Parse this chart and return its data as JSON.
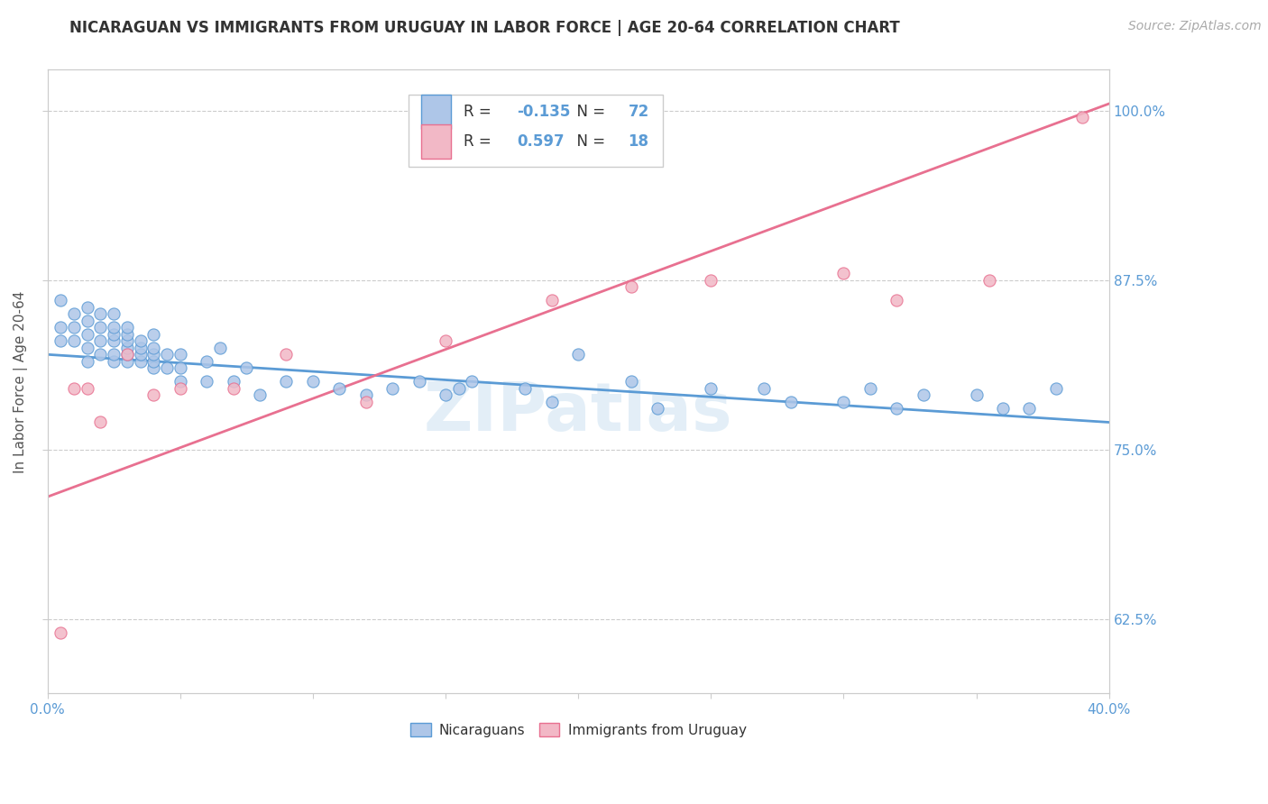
{
  "title": "NICARAGUAN VS IMMIGRANTS FROM URUGUAY IN LABOR FORCE | AGE 20-64 CORRELATION CHART",
  "source": "Source: ZipAtlas.com",
  "ylabel": "In Labor Force | Age 20-64",
  "xlim": [
    0.0,
    0.4
  ],
  "ylim": [
    0.57,
    1.03
  ],
  "xticks": [
    0.0,
    0.05,
    0.1,
    0.15,
    0.2,
    0.25,
    0.3,
    0.35,
    0.4
  ],
  "yticks": [
    0.625,
    0.75,
    0.875,
    1.0
  ],
  "yticklabels": [
    "62.5%",
    "75.0%",
    "87.5%",
    "100.0%"
  ],
  "blue_color": "#aec6e8",
  "pink_color": "#f2b8c6",
  "blue_edge_color": "#5b9bd5",
  "pink_edge_color": "#e87090",
  "blue_line_color": "#5b9bd5",
  "pink_line_color": "#e87090",
  "blue_R": -0.135,
  "blue_N": 72,
  "pink_R": 0.597,
  "pink_N": 18,
  "watermark": "ZIPatlas",
  "blue_scatter_x": [
    0.005,
    0.005,
    0.005,
    0.01,
    0.01,
    0.01,
    0.015,
    0.015,
    0.015,
    0.015,
    0.015,
    0.02,
    0.02,
    0.02,
    0.02,
    0.025,
    0.025,
    0.025,
    0.025,
    0.025,
    0.025,
    0.03,
    0.03,
    0.03,
    0.03,
    0.03,
    0.03,
    0.035,
    0.035,
    0.035,
    0.035,
    0.04,
    0.04,
    0.04,
    0.04,
    0.04,
    0.045,
    0.045,
    0.05,
    0.05,
    0.05,
    0.06,
    0.06,
    0.065,
    0.07,
    0.075,
    0.08,
    0.09,
    0.1,
    0.11,
    0.12,
    0.13,
    0.14,
    0.15,
    0.155,
    0.16,
    0.18,
    0.19,
    0.2,
    0.22,
    0.23,
    0.25,
    0.27,
    0.28,
    0.3,
    0.31,
    0.32,
    0.33,
    0.35,
    0.36,
    0.37,
    0.38
  ],
  "blue_scatter_y": [
    0.83,
    0.84,
    0.86,
    0.83,
    0.84,
    0.85,
    0.815,
    0.825,
    0.835,
    0.845,
    0.855,
    0.82,
    0.83,
    0.84,
    0.85,
    0.815,
    0.82,
    0.83,
    0.835,
    0.84,
    0.85,
    0.815,
    0.82,
    0.825,
    0.83,
    0.835,
    0.84,
    0.815,
    0.82,
    0.825,
    0.83,
    0.81,
    0.815,
    0.82,
    0.825,
    0.835,
    0.81,
    0.82,
    0.8,
    0.81,
    0.82,
    0.8,
    0.815,
    0.825,
    0.8,
    0.81,
    0.79,
    0.8,
    0.8,
    0.795,
    0.79,
    0.795,
    0.8,
    0.79,
    0.795,
    0.8,
    0.795,
    0.785,
    0.82,
    0.8,
    0.78,
    0.795,
    0.795,
    0.785,
    0.785,
    0.795,
    0.78,
    0.79,
    0.79,
    0.78,
    0.78,
    0.795
  ],
  "pink_scatter_x": [
    0.005,
    0.01,
    0.015,
    0.02,
    0.03,
    0.04,
    0.05,
    0.07,
    0.09,
    0.12,
    0.15,
    0.19,
    0.22,
    0.25,
    0.3,
    0.32,
    0.355,
    0.39
  ],
  "pink_scatter_y": [
    0.615,
    0.795,
    0.795,
    0.77,
    0.82,
    0.79,
    0.795,
    0.795,
    0.82,
    0.785,
    0.83,
    0.86,
    0.87,
    0.875,
    0.88,
    0.86,
    0.875,
    0.995
  ],
  "blue_line_x0": 0.0,
  "blue_line_x1": 0.4,
  "blue_line_y0": 0.82,
  "blue_line_y1": 0.77,
  "pink_line_x0": 0.0,
  "pink_line_x1": 0.4,
  "pink_line_y0": 0.715,
  "pink_line_y1": 1.005
}
